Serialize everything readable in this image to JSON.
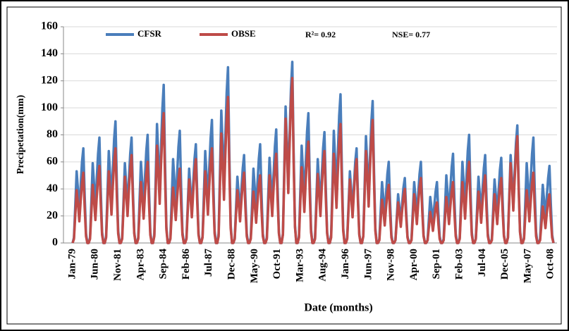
{
  "chart_data": {
    "type": "line",
    "y_label": "Precipetation(mm)",
    "x_label": "Date (months)",
    "annotations": [
      "R²= 0.92",
      "NSE= 0.77"
    ],
    "ylim": [
      0,
      160
    ],
    "yticks": [
      0,
      20,
      40,
      60,
      80,
      100,
      120,
      140,
      160
    ],
    "grid": true,
    "categories": [
      "Jan-79",
      null,
      null,
      null,
      null,
      null,
      null,
      null,
      null,
      null,
      null,
      null,
      null,
      null,
      null,
      null,
      null,
      "Jun-80",
      null,
      null,
      null,
      null,
      null,
      null,
      null,
      null,
      null,
      null,
      null,
      null,
      null,
      null,
      null,
      null,
      "Nov-81",
      null,
      null,
      null,
      null,
      null,
      null,
      null,
      null,
      null,
      null,
      null,
      null,
      null,
      null,
      null,
      null,
      "Apr-83",
      null,
      null,
      null,
      null,
      null,
      null,
      null,
      null,
      null,
      null,
      null,
      null,
      null,
      null,
      null,
      null,
      "Sep-84",
      null,
      null,
      null,
      null,
      null,
      null,
      null,
      null,
      null,
      null,
      null,
      null,
      null,
      null,
      null,
      null,
      "Feb-86",
      null,
      null,
      null,
      null,
      null,
      null,
      null,
      null,
      null,
      null,
      null,
      null,
      null,
      null,
      null,
      null,
      "Jul-87",
      null,
      null,
      null,
      null,
      null,
      null,
      null,
      null,
      null,
      null,
      null,
      null,
      null,
      null,
      null,
      null,
      "Dec-88",
      null,
      null,
      null,
      null,
      null,
      null,
      null,
      null,
      null,
      null,
      null,
      null,
      null,
      null,
      null,
      null,
      "May-90",
      null,
      null,
      null,
      null,
      null,
      null,
      null,
      null,
      null,
      null,
      null,
      null,
      null,
      null,
      null,
      null,
      "Oct-91",
      null,
      null,
      null,
      null,
      null,
      null,
      null,
      null,
      null,
      null,
      null,
      null,
      null,
      null,
      null,
      null,
      "Mar-93",
      null,
      null,
      null,
      null,
      null,
      null,
      null,
      null,
      null,
      null,
      null,
      null,
      null,
      null,
      null,
      null,
      "Aug-94",
      null,
      null,
      null,
      null,
      null,
      null,
      null,
      null,
      null,
      null,
      null,
      null,
      null,
      null,
      null,
      null,
      "Jan-96",
      null,
      null,
      null,
      null,
      null,
      null,
      null,
      null,
      null,
      null,
      null,
      null,
      null,
      null,
      null,
      null,
      "Jun-97",
      null,
      null,
      null,
      null,
      null,
      null,
      null,
      null,
      null,
      null,
      null,
      null,
      null,
      null,
      null,
      null,
      "Nov-98",
      null,
      null,
      null,
      null,
      null,
      null,
      null,
      null,
      null,
      null,
      null,
      null,
      null,
      null,
      null,
      null,
      "Apr-00",
      null,
      null,
      null,
      null,
      null,
      null,
      null,
      null,
      null,
      null,
      null,
      null,
      null,
      null,
      null,
      null,
      "Sep-01",
      null,
      null,
      null,
      null,
      null,
      null,
      null,
      null,
      null,
      null,
      null,
      null,
      null,
      null,
      null,
      null,
      "Feb-03",
      null,
      null,
      null,
      null,
      null,
      null,
      null,
      null,
      null,
      null,
      null,
      null,
      null,
      null,
      null,
      null,
      "Jul-04",
      null,
      null,
      null,
      null,
      null,
      null,
      null,
      null,
      null,
      null,
      null,
      null,
      null,
      null,
      null,
      null,
      "Dec-05",
      null,
      null,
      null,
      null,
      null,
      null,
      null,
      null,
      null,
      null,
      null,
      null,
      null,
      null,
      null,
      null,
      "May-07",
      null,
      null,
      null,
      null,
      null,
      null,
      null,
      null,
      null,
      null,
      null,
      null,
      null,
      null,
      null,
      null,
      "Oct-08",
      null,
      null
    ],
    "series": [
      {
        "name": "CFSR",
        "color": "#4a7ebb",
        "values": [
          0,
          4,
          28,
          53,
          39,
          21,
          42,
          60,
          70,
          35,
          7,
          0,
          0,
          4,
          31,
          59,
          43,
          23,
          47,
          66,
          78,
          39,
          8,
          0,
          0,
          5,
          36,
          68,
          50,
          27,
          54,
          77,
          90,
          45,
          9,
          0,
          0,
          4,
          31,
          59,
          43,
          23,
          47,
          66,
          78,
          39,
          8,
          0,
          0,
          4,
          32,
          60,
          44,
          24,
          48,
          68,
          80,
          40,
          8,
          0,
          0,
          6,
          47,
          88,
          64,
          35,
          70,
          99,
          117,
          59,
          12,
          0,
          0,
          4,
          33,
          62,
          46,
          25,
          50,
          71,
          83,
          42,
          8,
          0,
          0,
          4,
          29,
          55,
          40,
          22,
          44,
          62,
          73,
          37,
          7,
          0,
          0,
          5,
          36,
          68,
          50,
          27,
          55,
          77,
          91,
          46,
          9,
          0,
          0,
          7,
          52,
          98,
          72,
          39,
          78,
          111,
          130,
          65,
          13,
          0,
          0,
          3,
          26,
          49,
          36,
          20,
          39,
          55,
          65,
          33,
          7,
          0,
          0,
          4,
          29,
          55,
          40,
          22,
          44,
          62,
          73,
          37,
          7,
          0,
          0,
          4,
          34,
          63,
          46,
          25,
          50,
          71,
          84,
          42,
          8,
          0,
          0,
          7,
          54,
          101,
          74,
          40,
          80,
          114,
          134,
          67,
          13,
          0,
          0,
          5,
          38,
          72,
          53,
          29,
          58,
          82,
          96,
          48,
          10,
          0,
          0,
          4,
          33,
          62,
          45,
          25,
          49,
          70,
          82,
          41,
          8,
          0,
          0,
          6,
          44,
          83,
          61,
          33,
          66,
          94,
          110,
          55,
          11,
          0,
          0,
          4,
          28,
          53,
          39,
          21,
          42,
          60,
          70,
          35,
          7,
          0,
          0,
          5,
          42,
          79,
          58,
          32,
          63,
          89,
          105,
          53,
          11,
          0,
          0,
          3,
          24,
          45,
          33,
          18,
          36,
          51,
          60,
          30,
          6,
          0,
          0,
          2,
          19,
          36,
          26,
          14,
          29,
          41,
          48,
          24,
          5,
          0,
          0,
          3,
          24,
          45,
          33,
          18,
          36,
          51,
          60,
          30,
          6,
          0,
          0,
          2,
          18,
          34,
          25,
          14,
          27,
          38,
          45,
          23,
          5,
          0,
          0,
          3,
          26,
          50,
          36,
          20,
          40,
          56,
          66,
          33,
          7,
          0,
          0,
          4,
          32,
          60,
          44,
          24,
          48,
          68,
          80,
          40,
          8,
          0,
          0,
          3,
          26,
          49,
          36,
          20,
          39,
          55,
          65,
          33,
          7,
          0,
          0,
          3,
          25,
          47,
          35,
          19,
          38,
          54,
          63,
          32,
          6,
          0,
          0,
          4,
          35,
          65,
          48,
          26,
          52,
          74,
          87,
          44,
          9,
          0,
          0,
          4,
          31,
          59,
          43,
          23,
          47,
          66,
          78,
          39,
          8,
          0,
          0,
          3,
          23,
          43,
          31,
          17,
          34,
          48,
          57,
          29,
          6,
          0
        ]
      },
      {
        "name": "OBSE",
        "color": "#be4b48",
        "values": [
          0,
          3,
          21,
          39,
          29,
          16,
          31,
          44,
          52,
          26,
          5,
          0,
          0,
          3,
          23,
          43,
          31,
          17,
          34,
          48,
          57,
          29,
          6,
          0,
          0,
          4,
          28,
          53,
          39,
          21,
          42,
          60,
          70,
          35,
          7,
          0,
          0,
          3,
          26,
          49,
          36,
          20,
          39,
          55,
          65,
          33,
          7,
          0,
          0,
          3,
          24,
          45,
          33,
          18,
          36,
          51,
          60,
          30,
          6,
          0,
          0,
          5,
          38,
          72,
          53,
          29,
          58,
          82,
          96,
          48,
          10,
          0,
          0,
          3,
          22,
          41,
          30,
          17,
          33,
          47,
          55,
          28,
          6,
          0,
          0,
          3,
          25,
          47,
          34,
          19,
          37,
          53,
          62,
          31,
          6,
          0,
          0,
          4,
          28,
          53,
          39,
          21,
          42,
          60,
          70,
          35,
          7,
          0,
          0,
          5,
          43,
          81,
          59,
          32,
          65,
          92,
          108,
          54,
          11,
          0,
          0,
          3,
          21,
          39,
          29,
          16,
          31,
          44,
          52,
          26,
          5,
          0,
          0,
          3,
          20,
          38,
          28,
          15,
          30,
          43,
          50,
          25,
          5,
          0,
          0,
          3,
          26,
          50,
          36,
          20,
          40,
          56,
          66,
          33,
          7,
          0,
          0,
          6,
          49,
          92,
          67,
          37,
          73,
          104,
          122,
          61,
          12,
          0,
          0,
          4,
          30,
          56,
          41,
          23,
          45,
          64,
          75,
          38,
          8,
          0,
          0,
          3,
          27,
          51,
          37,
          20,
          41,
          58,
          68,
          34,
          7,
          0,
          0,
          4,
          35,
          66,
          48,
          26,
          53,
          75,
          88,
          44,
          9,
          0,
          0,
          3,
          25,
          47,
          34,
          19,
          37,
          53,
          62,
          31,
          6,
          0,
          0,
          5,
          36,
          68,
          50,
          27,
          55,
          77,
          91,
          46,
          9,
          0,
          0,
          2,
          17,
          32,
          24,
          13,
          26,
          37,
          43,
          22,
          4,
          0,
          0,
          2,
          16,
          30,
          22,
          12,
          24,
          34,
          40,
          20,
          4,
          0,
          0,
          2,
          19,
          36,
          26,
          14,
          29,
          41,
          48,
          24,
          5,
          0,
          0,
          2,
          12,
          23,
          17,
          9,
          18,
          26,
          30,
          15,
          3,
          0,
          0,
          2,
          18,
          34,
          25,
          14,
          27,
          38,
          45,
          23,
          5,
          0,
          0,
          3,
          24,
          45,
          33,
          18,
          36,
          51,
          60,
          30,
          6,
          0,
          0,
          3,
          20,
          38,
          28,
          15,
          30,
          43,
          50,
          25,
          5,
          0,
          0,
          2,
          19,
          36,
          26,
          14,
          29,
          41,
          48,
          24,
          5,
          0,
          0,
          4,
          32,
          59,
          43,
          24,
          47,
          67,
          79,
          40,
          8,
          0,
          0,
          3,
          21,
          39,
          29,
          16,
          31,
          44,
          52,
          26,
          5,
          0,
          0,
          2,
          14,
          27,
          20,
          11,
          22,
          31,
          36,
          18,
          4,
          0
        ]
      }
    ]
  }
}
